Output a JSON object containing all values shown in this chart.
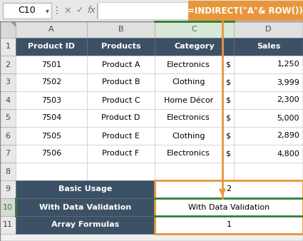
{
  "formula_bar_cell": "C10",
  "formula_bar_formula": "=INDIRECT(\"A\"& ROW())",
  "col_labels": [
    "A",
    "B",
    "C",
    "D"
  ],
  "header_row": [
    "Product ID",
    "Products",
    "Category",
    "Sales"
  ],
  "data_rows": [
    [
      "7501",
      "Product A",
      "Electronics",
      "$",
      "1,250"
    ],
    [
      "7502",
      "Product B",
      "Clothing",
      "$",
      "3,999"
    ],
    [
      "7503",
      "Product C",
      "Home Décor",
      "$",
      "2,300"
    ],
    [
      "7504",
      "Product D",
      "Electronics",
      "$",
      "5,000"
    ],
    [
      "7505",
      "Product E",
      "Clothing",
      "$",
      "2,890"
    ],
    [
      "7506",
      "Product F",
      "Electronics",
      "$",
      "4,800"
    ]
  ],
  "bottom_labels": [
    "Basic Usage",
    "With Data Validation",
    "Array Formulas"
  ],
  "bottom_values": [
    "2",
    "With Data Validation",
    "1"
  ],
  "header_bg": "#3d5166",
  "header_fg": "#ffffff",
  "col_header_bg": "#e0e0e0",
  "col_header_fg": "#444444",
  "row_header_bg": "#e8e8e8",
  "data_bg": "#ffffff",
  "grid_color": "#c0c0c0",
  "dark_grid": "#888888",
  "green_color": "#2e7d32",
  "orange_color": "#e8963c",
  "formula_bg": "#e8e8e8",
  "col_c_header_bg": "#d8e8d8",
  "col_c_header_fg": "#2e7d32"
}
